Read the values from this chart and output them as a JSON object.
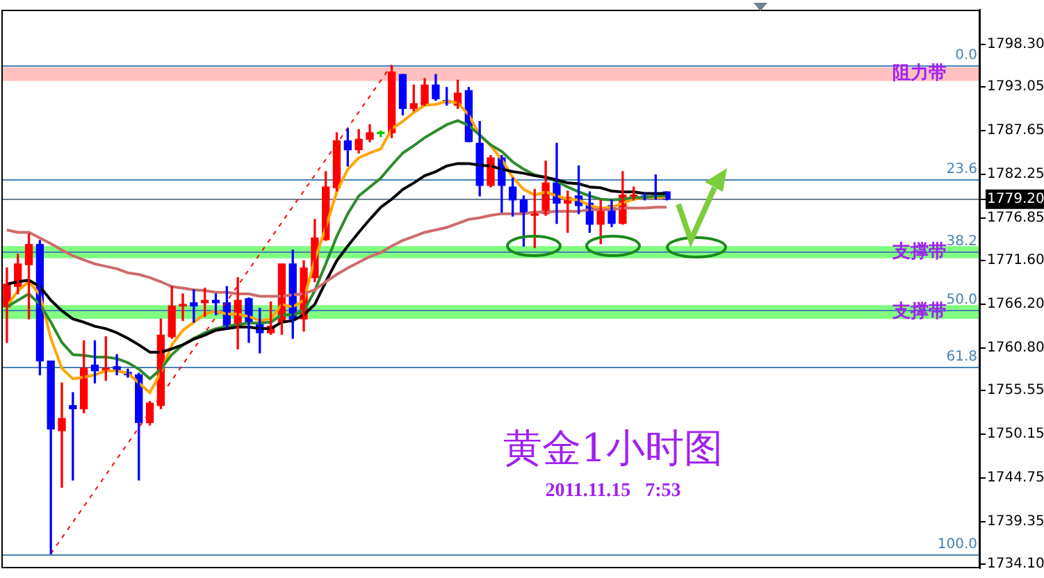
{
  "chart_data": {
    "type": "candlestick",
    "title": "黄金1小时图",
    "subtitle": "2011.11.15   7:53",
    "tick_labels": "y",
    "categories": [
      null,
      null,
      null,
      null,
      null,
      null,
      null,
      null,
      null,
      null,
      null,
      null,
      null,
      null,
      null,
      null,
      null,
      null,
      null,
      null,
      null,
      null,
      null,
      null,
      null,
      null,
      null,
      null,
      null,
      null,
      null,
      null,
      null,
      null,
      null,
      null,
      null,
      null,
      null,
      null,
      null,
      null,
      null,
      null,
      null,
      null,
      null,
      null,
      null,
      null,
      null,
      null,
      null,
      null,
      null,
      null,
      null,
      null,
      null,
      null,
      null,
      null,
      null,
      null,
      null,
      null,
      null,
      null,
      null,
      null,
      null,
      null,
      null,
      null,
      null,
      null,
      null,
      null,
      null,
      null,
      null,
      null,
      null,
      null,
      null,
      null,
      null,
      null,
      null
    ],
    "ohlc": [
      [
        1765.9,
        1770.7,
        1761.5,
        1768.7
      ],
      [
        1768.4,
        1772.4,
        1767.5,
        1771.2
      ],
      [
        1771.1,
        1774.9,
        1764.4,
        1773.6
      ],
      [
        1773.6,
        1774.1,
        1757.5,
        1759.2
      ],
      [
        1759.2,
        1759.2,
        1735.4,
        1750.8
      ],
      [
        1750.6,
        1756.5,
        1743.6,
        1752.1
      ],
      [
        1753.7,
        1755.3,
        1744.5,
        1753.3
      ],
      [
        1753.3,
        1761.7,
        1752.8,
        1758.3
      ],
      [
        1758.7,
        1761.7,
        1756.5,
        1758.0
      ],
      [
        1758.0,
        1762.2,
        1756.8,
        1758.3
      ],
      [
        1758.5,
        1760.0,
        1757.5,
        1758.0
      ],
      [
        1757.8,
        1758.2,
        1757.2,
        1757.5
      ],
      [
        1757.5,
        1757.7,
        1744.5,
        1751.6
      ],
      [
        1751.6,
        1754.2,
        1751.3,
        1754.0
      ],
      [
        1753.7,
        1764.4,
        1753.3,
        1762.4
      ],
      [
        1762.2,
        1768.4,
        1762.0,
        1766.0
      ],
      [
        1766.0,
        1767.5,
        1764.2,
        1766.2
      ],
      [
        1766.4,
        1768.0,
        1764.0,
        1766.0
      ],
      [
        1766.4,
        1768.2,
        1764.7,
        1766.7
      ],
      [
        1766.7,
        1767.5,
        1764.9,
        1766.4
      ],
      [
        1766.4,
        1768.4,
        1763.2,
        1763.5
      ],
      [
        1763.5,
        1769.5,
        1760.7,
        1766.7
      ],
      [
        1766.9,
        1767.0,
        1761.5,
        1764.0
      ],
      [
        1763.7,
        1765.7,
        1760.2,
        1762.7
      ],
      [
        1762.7,
        1766.5,
        1762.5,
        1763.5
      ],
      [
        1764.0,
        1771.2,
        1762.5,
        1771.2
      ],
      [
        1771.2,
        1772.9,
        1762.0,
        1764.4
      ],
      [
        1764.4,
        1771.6,
        1762.9,
        1770.7
      ],
      [
        1769.5,
        1776.7,
        1769.0,
        1774.4
      ],
      [
        1774.2,
        1782.6,
        1774.1,
        1780.7
      ],
      [
        1780.6,
        1787.4,
        1780.2,
        1786.4
      ],
      [
        1786.4,
        1787.9,
        1783.3,
        1785.3
      ],
      [
        1785.3,
        1787.8,
        1784.9,
        1786.6
      ],
      [
        1786.6,
        1788.4,
        1786.3,
        1787.4
      ],
      [
        1787.3,
        1787.6,
        1786.9,
        1787.3
      ],
      [
        1787.4,
        1795.6,
        1786.8,
        1794.9
      ],
      [
        1794.6,
        1794.6,
        1789.6,
        1790.4
      ],
      [
        1790.4,
        1793.3,
        1790.1,
        1791.0
      ],
      [
        1790.8,
        1794.1,
        1790.8,
        1793.3
      ],
      [
        1793.3,
        1794.6,
        1791.4,
        1791.6
      ],
      [
        1791.4,
        1793.0,
        1790.8,
        1791.1
      ],
      [
        1790.8,
        1793.9,
        1790.4,
        1792.3
      ],
      [
        1792.6,
        1793.0,
        1786.3,
        1786.3
      ],
      [
        1786.1,
        1788.8,
        1779.6,
        1780.9
      ],
      [
        1780.9,
        1784.6,
        1780.7,
        1784.3
      ],
      [
        1784.3,
        1784.6,
        1777.6,
        1780.9
      ],
      [
        1780.7,
        1781.8,
        1777.1,
        1779.1
      ],
      [
        1779.1,
        1779.6,
        1773.4,
        1777.4
      ],
      [
        1777.2,
        1780.4,
        1773.2,
        1777.4
      ],
      [
        1777.4,
        1783.9,
        1777.2,
        1781.2
      ],
      [
        1781.2,
        1786.1,
        1776.2,
        1778.7
      ],
      [
        1778.7,
        1780.2,
        1775.1,
        1779.4
      ],
      [
        1779.6,
        1783.3,
        1777.4,
        1778.4
      ],
      [
        1778.7,
        1780.1,
        1775.1,
        1776.1
      ],
      [
        1776.1,
        1779.1,
        1773.7,
        1777.9
      ],
      [
        1778.4,
        1779.1,
        1775.8,
        1776.2
      ],
      [
        1776.2,
        1782.6,
        1776.1,
        1779.7
      ],
      [
        1779.4,
        1780.7,
        1779.1,
        1779.7
      ],
      [
        1779.6,
        1780.0,
        1779.1,
        1779.4
      ],
      [
        1779.9,
        1782.2,
        1779.2,
        1779.8
      ],
      [
        1780.1,
        1780.1,
        1779.1,
        1779.2
      ],
      null,
      null,
      null,
      null,
      null,
      null,
      null,
      null,
      null,
      null,
      null,
      null,
      null,
      null,
      null,
      null,
      null,
      null,
      null,
      null,
      null,
      null,
      null,
      null,
      null,
      null,
      null,
      null
    ],
    "colors": [
      "#ff0000",
      "#ff0000",
      "#ff0000",
      "#0000ff",
      "#0000ff",
      "#ff0000",
      "#0000ff",
      "#ff0000",
      "#0000ff",
      "#ff0000",
      "#0000ff",
      "#0000ff",
      "#0000ff",
      "#ff0000",
      "#ff0000",
      "#ff0000",
      "#ff0000",
      "#0000ff",
      "#ff0000",
      "#0000ff",
      "#0000ff",
      "#ff0000",
      "#0000ff",
      "#0000ff",
      "#ff0000",
      "#ff0000",
      "#0000ff",
      "#ff0000",
      "#ff0000",
      "#ff0000",
      "#ff0000",
      "#0000ff",
      "#ff0000",
      "#ff0000",
      "#00cc00",
      "#ff0000",
      "#0000ff",
      "#ff0000",
      "#ff0000",
      "#0000ff",
      "#0000ff",
      "#ff0000",
      "#0000ff",
      "#0000ff",
      "#ff0000",
      "#0000ff",
      "#0000ff",
      "#0000ff",
      "#ff0000",
      "#ff0000",
      "#0000ff",
      "#ff0000",
      "#0000ff",
      "#0000ff",
      "#ff0000",
      "#0000ff",
      "#ff0000",
      "#ff0000",
      "#0000ff",
      "#0000ff",
      "#0000ff",
      null,
      null,
      null,
      null,
      null,
      null,
      null,
      null,
      null,
      null,
      null,
      null,
      null,
      null,
      null,
      null,
      null,
      null,
      null,
      null,
      null,
      null,
      null,
      null,
      null,
      null,
      null,
      null
    ],
    "series": [
      {
        "type": "line",
        "color": "#cd6b6b",
        "values": [
          1775.4,
          1775.1,
          1775.1,
          1774.4,
          1773.7,
          1772.9,
          1772.2,
          1771.7,
          1771.2,
          1770.9,
          1770.6,
          1770.1,
          1769.9,
          1769.5,
          1769.0,
          1768.4,
          1768.2,
          1768.0,
          1767.9,
          1767.7,
          1767.7,
          1767.5,
          1767.5,
          1767.2,
          1767.2,
          1767.2,
          1767.4,
          1767.5,
          1768.0,
          1769.0,
          1769.9,
          1770.7,
          1771.4,
          1772.1,
          1772.6,
          1773.4,
          1774.1,
          1774.6,
          1775.1,
          1775.4,
          1775.7,
          1776.2,
          1776.7,
          1776.9,
          1777.2,
          1777.4,
          1777.4,
          1777.4,
          1777.6,
          1777.6,
          1777.7,
          1777.7,
          1777.7,
          1777.9,
          1777.9,
          1777.9,
          1778.1,
          1778.1,
          1778.1,
          1778.2,
          1778.2,
          null,
          null,
          null,
          null,
          null,
          null,
          null,
          null,
          null,
          null,
          null,
          null,
          null,
          null,
          null,
          null,
          null,
          null,
          null,
          null,
          null,
          null,
          null,
          null,
          null,
          null,
          null,
          null
        ]
      },
      {
        "type": "line",
        "color": "#000000",
        "values": [
          1768.7,
          1769.0,
          1769.2,
          1768.4,
          1766.7,
          1765.4,
          1764.4,
          1764.0,
          1763.5,
          1763.2,
          1762.7,
          1762.0,
          1761.2,
          1760.3,
          1760.3,
          1760.7,
          1761.2,
          1761.9,
          1762.4,
          1763.0,
          1763.2,
          1763.4,
          1763.4,
          1763.2,
          1763.2,
          1764.0,
          1764.2,
          1764.9,
          1766.2,
          1769.0,
          1771.6,
          1773.4,
          1775.1,
          1776.7,
          1778.2,
          1779.2,
          1780.4,
          1781.2,
          1782.1,
          1782.6,
          1783.3,
          1783.6,
          1783.6,
          1783.4,
          1783.3,
          1782.9,
          1782.6,
          1782.4,
          1782.1,
          1781.9,
          1781.6,
          1781.2,
          1781.1,
          1780.7,
          1780.6,
          1780.2,
          1780.1,
          1780.1,
          1779.9,
          1779.9,
          1779.9,
          null,
          null,
          null,
          null,
          null,
          null,
          null,
          null,
          null,
          null,
          null,
          null,
          null,
          null,
          null,
          null,
          null,
          null,
          null,
          null,
          null,
          null,
          null,
          null,
          null,
          null,
          null,
          null
        ]
      },
      {
        "type": "line",
        "color": "#2e8b2e",
        "values": [
          1765.9,
          1766.7,
          1767.5,
          1766.2,
          1764.0,
          1761.5,
          1760.0,
          1759.9,
          1759.7,
          1759.7,
          1759.5,
          1759.0,
          1758.2,
          1757.0,
          1758.2,
          1760.0,
          1761.2,
          1762.0,
          1762.7,
          1763.2,
          1763.5,
          1763.7,
          1763.9,
          1763.9,
          1764.0,
          1764.9,
          1764.9,
          1765.4,
          1767.9,
          1771.2,
          1774.6,
          1777.4,
          1779.6,
          1780.7,
          1781.8,
          1783.4,
          1784.9,
          1785.8,
          1786.8,
          1787.6,
          1788.4,
          1788.9,
          1788.3,
          1787.1,
          1785.9,
          1785.1,
          1783.8,
          1782.9,
          1782.2,
          1781.9,
          1781.4,
          1780.7,
          1780.1,
          1779.6,
          1779.2,
          1779.1,
          1779.2,
          1779.4,
          1779.4,
          1779.6,
          1779.6,
          null,
          null,
          null,
          null,
          null,
          null,
          null,
          null,
          null,
          null,
          null,
          null,
          null,
          null,
          null,
          null,
          null,
          null,
          null,
          null,
          null,
          null,
          null,
          null,
          null,
          null,
          null,
          null
        ]
      },
      {
        "type": "line",
        "color": "#ffa500",
        "values": [
          1765.9,
          1767.9,
          1769.0,
          1767.4,
          1762.0,
          1758.3,
          1757.0,
          1757.2,
          1757.5,
          1758.0,
          1758.0,
          1757.7,
          1756.5,
          1755.3,
          1757.8,
          1761.2,
          1763.0,
          1764.0,
          1765.0,
          1765.4,
          1765.0,
          1765.0,
          1764.7,
          1764.2,
          1764.4,
          1766.2,
          1765.9,
          1766.7,
          1771.7,
          1775.7,
          1780.1,
          1782.9,
          1784.3,
          1784.9,
          1785.4,
          1787.9,
          1788.8,
          1789.9,
          1790.8,
          1790.9,
          1791.3,
          1791.1,
          1789.6,
          1787.1,
          1785.8,
          1784.1,
          1781.9,
          1780.4,
          1779.7,
          1780.1,
          1779.6,
          1779.2,
          1779.1,
          1778.4,
          1778.1,
          1778.2,
          1778.7,
          1779.2,
          1779.4,
          1779.4,
          1779.4,
          null,
          null,
          null,
          null,
          null,
          null,
          null,
          null,
          null,
          null,
          null,
          null,
          null,
          null,
          null,
          null,
          null,
          null,
          null,
          null,
          null,
          null,
          null,
          null,
          null,
          null,
          null,
          null
        ]
      },
      {
        "type": "line",
        "color": "#ff0000",
        "line_style": "dashed",
        "values": [
          null,
          null,
          null,
          null,
          1735.4,
          null,
          null,
          null,
          null,
          null,
          null,
          null,
          null,
          null,
          null,
          null,
          null,
          null,
          null,
          null,
          null,
          null,
          null,
          null,
          null,
          null,
          null,
          null,
          null,
          null,
          null,
          null,
          null,
          null,
          null,
          1795.8,
          null,
          null,
          null,
          null,
          null,
          null,
          null,
          null,
          null,
          null,
          null,
          null,
          null,
          null,
          null,
          null,
          null,
          null,
          null,
          null,
          null,
          null,
          null,
          null,
          null,
          null,
          null,
          null,
          null,
          null,
          null,
          null,
          null,
          null,
          null,
          null,
          null,
          null,
          null,
          null,
          null,
          null,
          null,
          null,
          null,
          null,
          null,
          null,
          null,
          null,
          null,
          null,
          null
        ]
      }
    ],
    "ylim": [
      1733.6,
      1802.6
    ],
    "yticks": [
      {
        "value": 1798.3,
        "label": "1798.30"
      },
      {
        "value": 1793.05,
        "label": "1793.05"
      },
      {
        "value": 1787.65,
        "label": "1787.65"
      },
      {
        "value": 1782.25,
        "label": "1782.25"
      },
      {
        "value": 1779.2,
        "label": "1779.20"
      },
      {
        "value": 1776.85,
        "label": "1776.85"
      },
      {
        "value": 1771.6,
        "label": "1771.60"
      },
      {
        "value": 1766.2,
        "label": "1766.20"
      },
      {
        "value": 1760.8,
        "label": "1760.80"
      },
      {
        "value": 1755.55,
        "label": "1755.55"
      },
      {
        "value": 1750.15,
        "label": "1750.15"
      },
      {
        "value": 1744.75,
        "label": "1744.75"
      },
      {
        "value": 1739.35,
        "label": "1739.35"
      },
      {
        "value": 1734.1,
        "label": "1734.10"
      }
    ],
    "bands": [
      {
        "axis": "y",
        "from": 1793.8,
        "to": 1795.5,
        "label": "阻力带",
        "color": "#ffc0c0"
      },
      {
        "axis": "y",
        "from": 1771.9,
        "to": 1773.4,
        "label": "支撑带",
        "color": "#80ff80"
      },
      {
        "axis": "y",
        "from": 1764.4,
        "to": 1766.1,
        "label": "支撑带",
        "color": "#80ff80"
      }
    ],
    "ref_lines": [
      {
        "axis": "y",
        "value": 1795.8,
        "color": "#4682b4"
      },
      {
        "axis": "y",
        "value": 1781.6,
        "color": "#4682b4"
      },
      {
        "axis": "y",
        "value": 1772.7,
        "color": "#4682b4"
      },
      {
        "axis": "y",
        "value": 1765.6,
        "color": "#4682b4"
      },
      {
        "axis": "y",
        "value": 1758.5,
        "color": "#4682b4"
      },
      {
        "axis": "y",
        "value": 1735.4,
        "color": "#4682b4"
      },
      {
        "axis": "y",
        "value": 1779.2,
        "color": "#708090"
      }
    ],
    "annotations": [
      {
        "text": "0.0",
        "y": 1795.8
      },
      {
        "text": "23.6",
        "y": 1781.6
      },
      {
        "text": "38.2",
        "y": 1772.7
      },
      {
        "text": "50.0",
        "y": 1765.6
      },
      {
        "text": "61.8",
        "y": 1758.5
      },
      {
        "text": "100.0",
        "y": 1735.4
      }
    ]
  }
}
